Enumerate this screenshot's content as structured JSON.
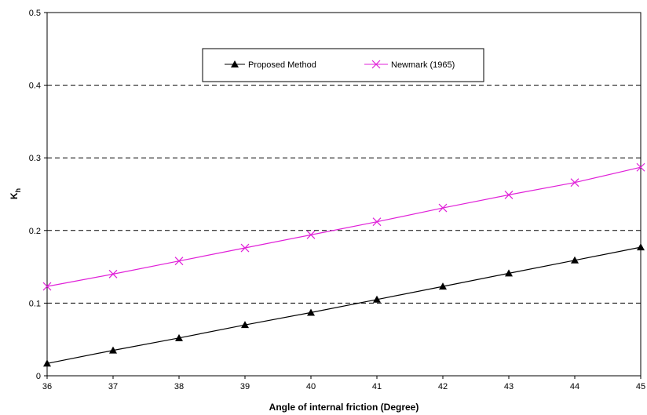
{
  "chart_data": {
    "type": "line",
    "title": "",
    "xlabel": "Angle of internal friction (Degree)",
    "ylabel": "K",
    "ylabel_subscript": "h",
    "x": [
      36,
      37,
      38,
      39,
      40,
      41,
      42,
      43,
      44,
      45
    ],
    "xlim": [
      36,
      45
    ],
    "ylim": [
      0,
      0.5
    ],
    "x_ticks": [
      "36",
      "37",
      "38",
      "39",
      "40",
      "41",
      "42",
      "43",
      "44",
      "45"
    ],
    "y_ticks": [
      {
        "value": 0,
        "label": "0"
      },
      {
        "value": 0.1,
        "label": "0.1"
      },
      {
        "value": 0.2,
        "label": "0.2"
      },
      {
        "value": 0.3,
        "label": "0.3"
      },
      {
        "value": 0.4,
        "label": "0.4"
      },
      {
        "value": 0.5,
        "label": "0.5"
      }
    ],
    "grid": "horizontal dashed",
    "legend_position": "top-center",
    "series": [
      {
        "name": "Proposed Method",
        "color": "#000000",
        "marker": "triangle",
        "values": [
          0.017,
          0.035,
          0.052,
          0.07,
          0.087,
          0.105,
          0.123,
          0.141,
          0.159,
          0.177
        ]
      },
      {
        "name": "Newmark (1965)",
        "color": "#e020d8",
        "marker": "x",
        "values": [
          0.123,
          0.14,
          0.158,
          0.176,
          0.194,
          0.212,
          0.231,
          0.249,
          0.266,
          0.287
        ]
      }
    ]
  }
}
